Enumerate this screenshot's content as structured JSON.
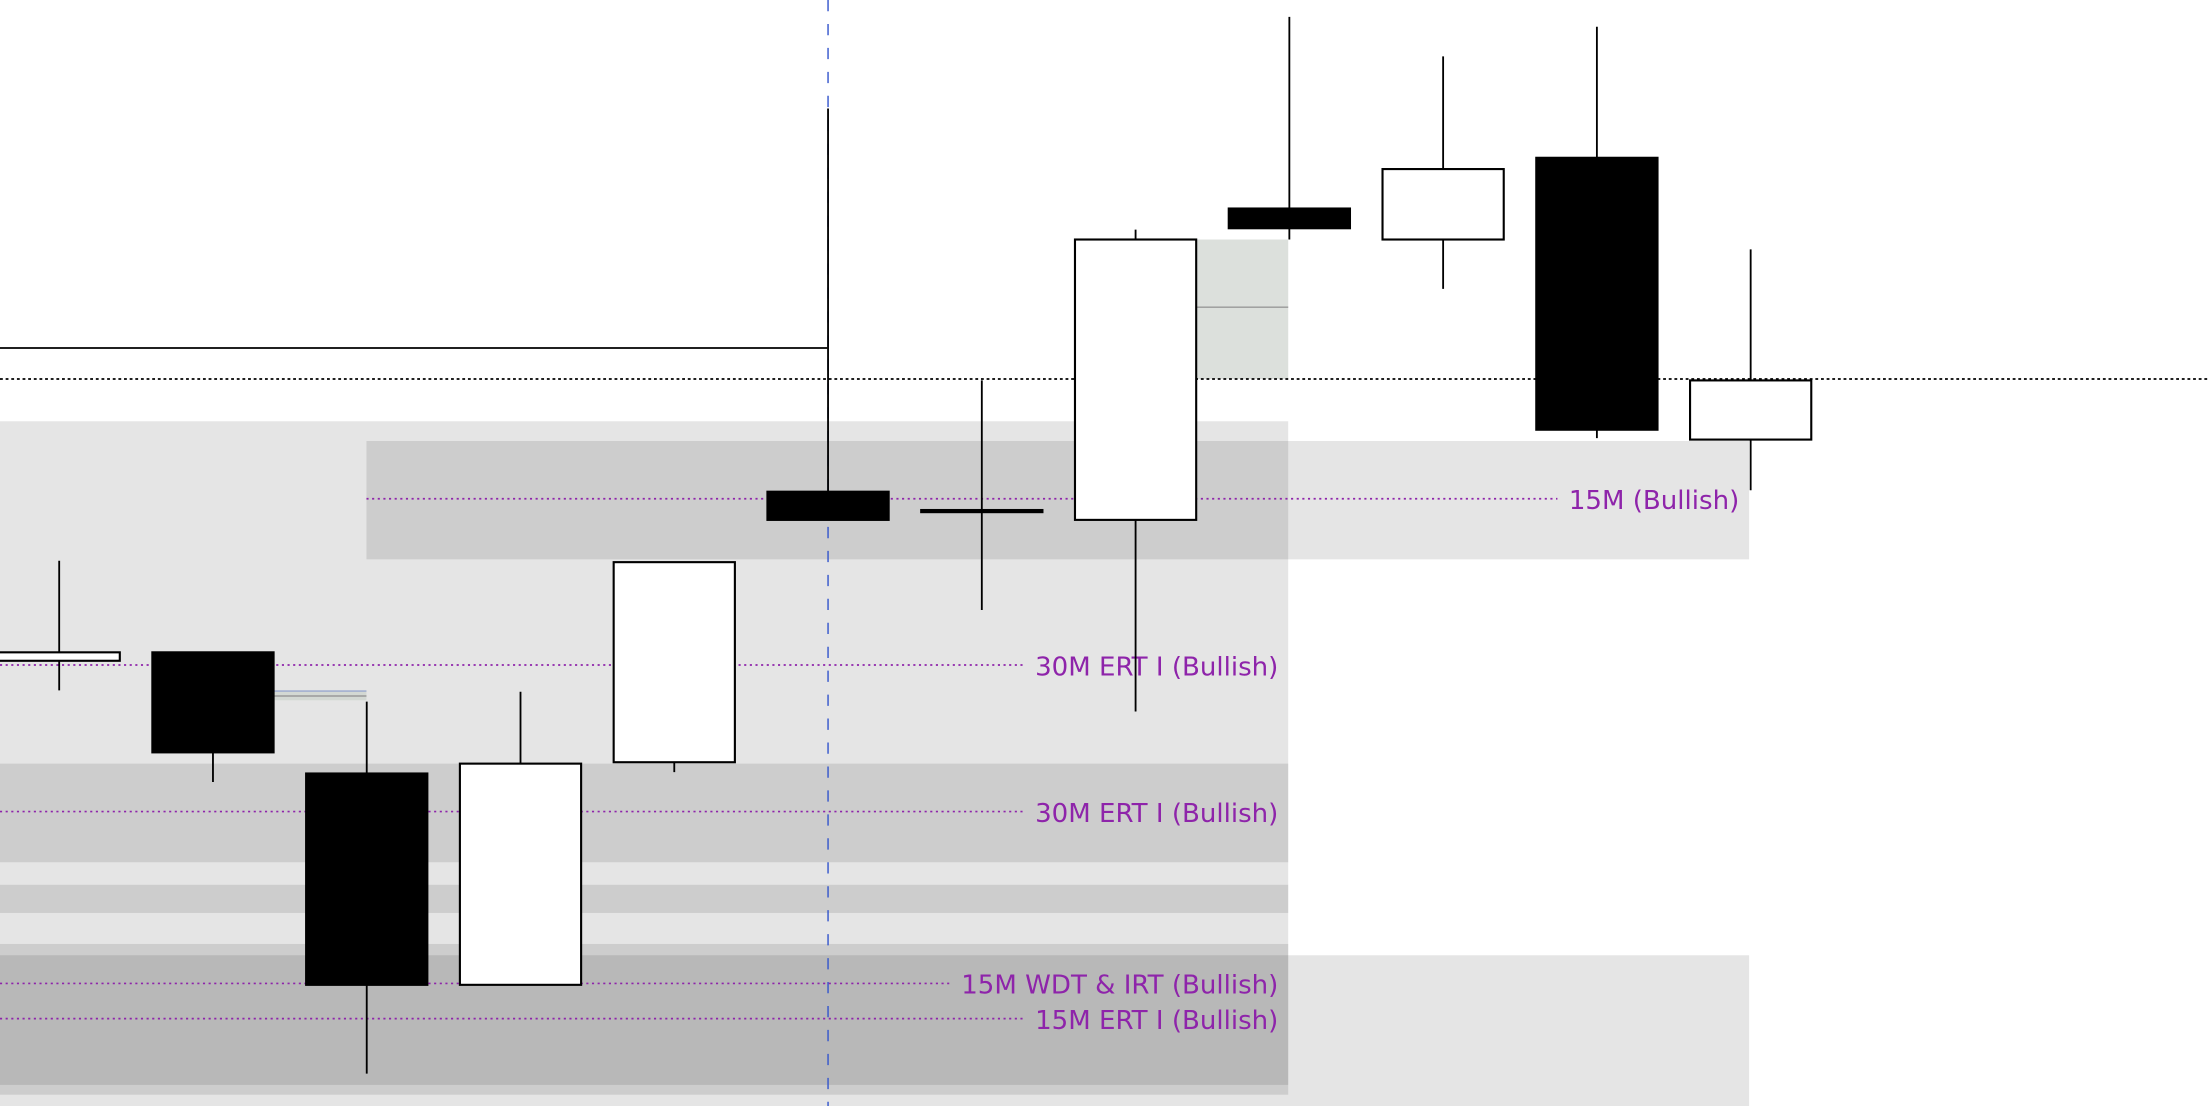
{
  "chart_data": {
    "type": "candlestick",
    "price_scale": "unlabeled relative price units",
    "grid": false,
    "colors": {
      "bullish_body": "#ffffff",
      "bearish_body": "#000000",
      "wick": "#000000",
      "zone": "#e6e6e6",
      "fvg_zone": "#dce0dc",
      "level_line": "#8e24aa",
      "session_line": "#3355cc"
    },
    "candles": [
      {
        "o": 331,
        "h": 402,
        "l": 310,
        "c": 337
      },
      {
        "o": 337,
        "h": 337,
        "l": 245,
        "c": 266
      },
      {
        "o": 251,
        "h": 302,
        "l": 38,
        "c": 101
      },
      {
        "o": 101,
        "h": 309,
        "l": 101,
        "c": 258
      },
      {
        "o": 259,
        "h": 401,
        "l": 252,
        "c": 401
      },
      {
        "o": 451,
        "h": 723,
        "l": 431,
        "c": 431
      },
      {
        "o": 438,
        "h": 530,
        "l": 367,
        "c": 438
      },
      {
        "o": 431,
        "h": 637,
        "l": 295,
        "c": 630
      },
      {
        "o": 652,
        "h": 788,
        "l": 630,
        "c": 638
      },
      {
        "o": 630,
        "h": 760,
        "l": 595,
        "c": 680
      },
      {
        "o": 688,
        "h": 781,
        "l": 489,
        "c": 495
      },
      {
        "o": 488,
        "h": 623,
        "l": 452,
        "c": 530
      }
    ],
    "levels": [
      {
        "label": "15M (Bullish)",
        "price": 446
      },
      {
        "label": "30M ERT I (Bullish)",
        "price": 328
      },
      {
        "label": "30M ERT I (Bullish)",
        "price": 224
      },
      {
        "label": "15M WDT & IRT (Bullish)",
        "price": 102
      },
      {
        "label": "15M ERT I (Bullish)",
        "price": 77
      }
    ],
    "reference_lines": {
      "solid_high": 553,
      "dotted_price": 531
    }
  }
}
